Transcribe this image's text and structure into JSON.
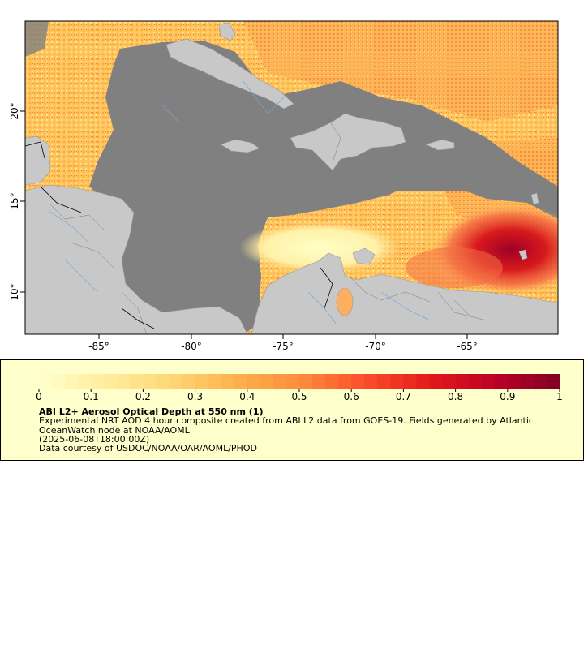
{
  "map": {
    "x_ticks": [
      "-85°",
      "-80°",
      "-75°",
      "-70°",
      "-65°"
    ],
    "y_ticks": [
      "10°",
      "15°",
      "20°"
    ]
  },
  "legend": {
    "ticks": [
      "0",
      "0.1",
      "0.2",
      "0.3",
      "0.4",
      "0.5",
      "0.6",
      "0.7",
      "0.8",
      "0.9",
      "1"
    ],
    "title": "ABI L2+ Aerosol Optical Depth at 550 nm (1)",
    "description": "Experimental NRT AOD 4 hour composite created from ABI L2 data from GOES-19. Fields generated by Atlantic OceanWatch node at NOAA/AOML",
    "timestamp": "(2025-06-08T18:00:00Z)",
    "credit": "Data courtesy of USDOC/NOAA/OAR/AOML/PHOD"
  },
  "colors": {
    "no_data": "#808080",
    "land": "#c8c8c8",
    "ramp": [
      "#ffffcc",
      "#ffeda0",
      "#fed976",
      "#feb24c",
      "#fd8d3c",
      "#fc4e2a",
      "#e31a1c",
      "#bd0026",
      "#800026"
    ]
  }
}
